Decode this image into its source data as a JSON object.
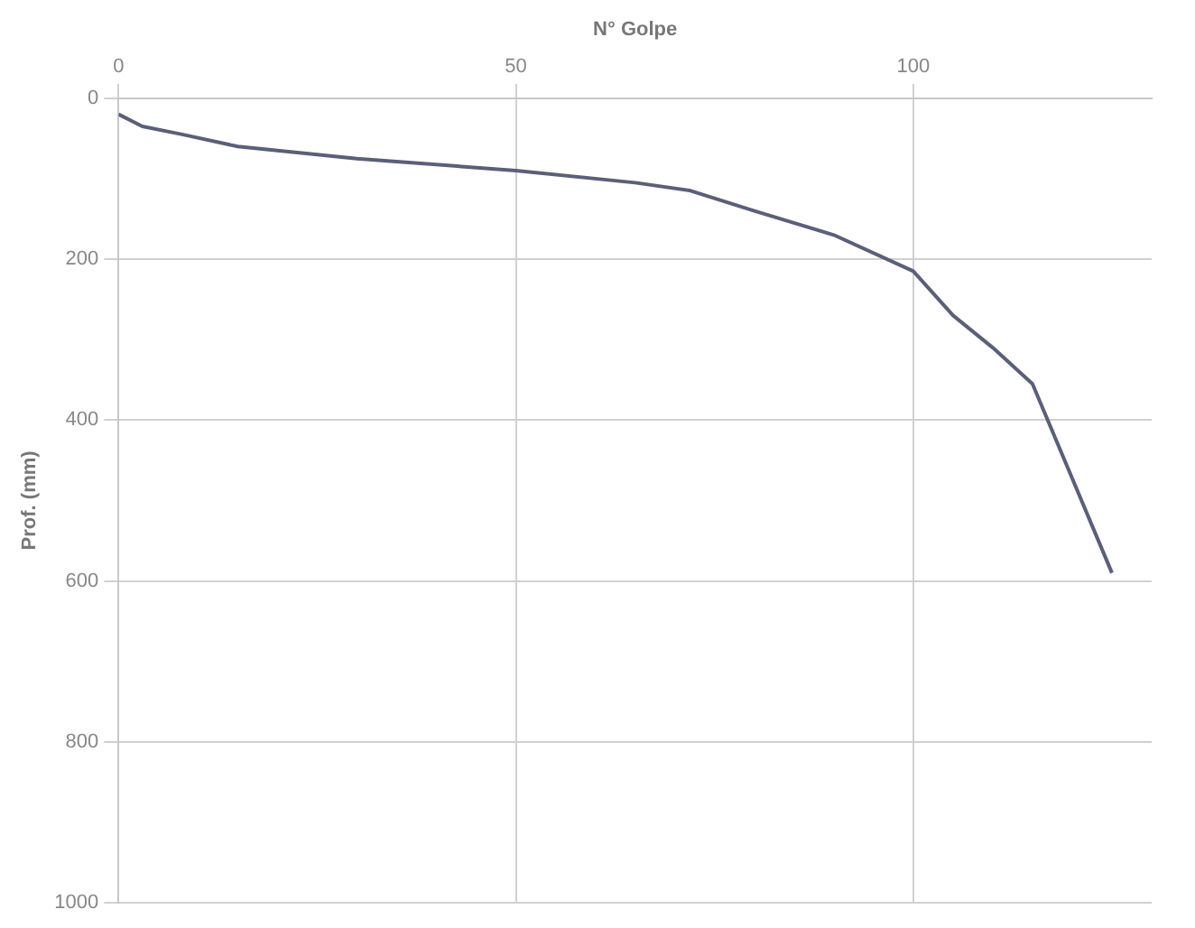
{
  "chart_data": {
    "type": "line",
    "xlabel": "N° Golpe",
    "ylabel": "Prof. (mm)",
    "series": [
      {
        "color": "#5a5f7a",
        "x": [
          0,
          3,
          8,
          15,
          30,
          50,
          65,
          72,
          80,
          90,
          100,
          105,
          110,
          115,
          125
        ],
        "values": [
          20,
          35,
          45,
          60,
          75,
          90,
          105,
          115,
          140,
          170,
          215,
          270,
          310,
          355,
          590
        ]
      }
    ],
    "xlim": [
      0,
      130
    ],
    "xticks": [
      0,
      50,
      100
    ],
    "ylim": [
      1000,
      0
    ],
    "yticks": [
      0,
      200,
      400,
      600,
      800,
      1000
    ],
    "grid": true,
    "legend": false,
    "marker": "none",
    "line_style": "solid"
  }
}
